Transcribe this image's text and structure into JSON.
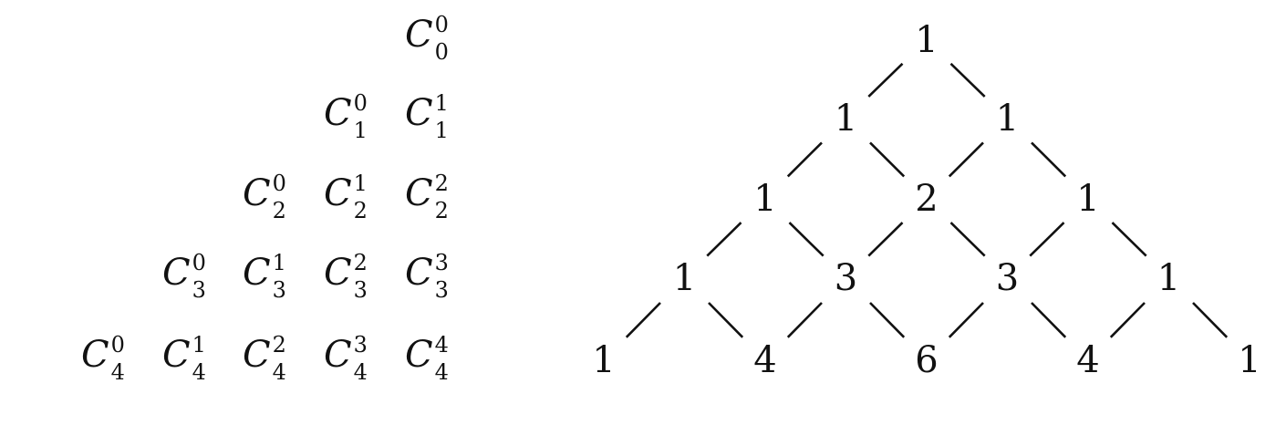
{
  "combinations": {
    "symbol": "C",
    "rows": [
      [
        {
          "sup": "0",
          "sub": "0"
        }
      ],
      [
        {
          "sup": "0",
          "sub": "1"
        },
        {
          "sup": "1",
          "sub": "1"
        }
      ],
      [
        {
          "sup": "0",
          "sub": "2"
        },
        {
          "sup": "1",
          "sub": "2"
        },
        {
          "sup": "2",
          "sub": "2"
        }
      ],
      [
        {
          "sup": "0",
          "sub": "3"
        },
        {
          "sup": "1",
          "sub": "3"
        },
        {
          "sup": "2",
          "sub": "3"
        },
        {
          "sup": "3",
          "sub": "3"
        }
      ],
      [
        {
          "sup": "0",
          "sub": "4"
        },
        {
          "sup": "1",
          "sub": "4"
        },
        {
          "sup": "2",
          "sub": "4"
        },
        {
          "sup": "3",
          "sub": "4"
        },
        {
          "sup": "4",
          "sub": "4"
        }
      ]
    ]
  },
  "pascal": {
    "rows": [
      [
        "1"
      ],
      [
        "1",
        "1"
      ],
      [
        "1",
        "2",
        "1"
      ],
      [
        "1",
        "3",
        "3",
        "1"
      ],
      [
        "1",
        "4",
        "6",
        "4",
        "1"
      ]
    ]
  }
}
